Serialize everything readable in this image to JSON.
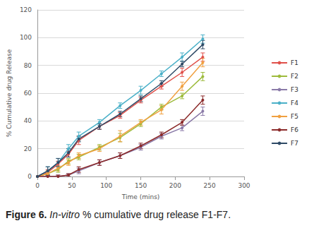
{
  "chart_data": {
    "type": "line",
    "x_label": "Time (mins)",
    "y_label": "% Cumulative drug Release",
    "caption": "Figure 6. In-vitro % cumulative drug release F1-F7.",
    "x": [
      0,
      15,
      30,
      45,
      60,
      90,
      120,
      150,
      180,
      210,
      240
    ],
    "xlim": [
      0,
      300
    ],
    "xticks": [
      0,
      50,
      100,
      150,
      200,
      250,
      300
    ],
    "ylim": [
      0,
      120
    ],
    "yticks": [
      0,
      20,
      40,
      60,
      80,
      100,
      120
    ],
    "grid": true,
    "legend": "right",
    "marker": "circle",
    "series": [
      {
        "name": "F1",
        "color": "#e0504a",
        "values": [
          0,
          3,
          9,
          16,
          26,
          36,
          44,
          55,
          65,
          75,
          86
        ],
        "errors": [
          0,
          2,
          2,
          2,
          3,
          2,
          2,
          2,
          2,
          3,
          3
        ]
      },
      {
        "name": "F2",
        "color": "#9dbb3c",
        "values": [
          0,
          2,
          5,
          11,
          14,
          21,
          28,
          38,
          50,
          58,
          72
        ],
        "errors": [
          0,
          2,
          2,
          2,
          2,
          2,
          3,
          2,
          2,
          2,
          3
        ]
      },
      {
        "name": "F3",
        "color": "#8a7aa8",
        "values": [
          0,
          0,
          0,
          1,
          4,
          10,
          15,
          21,
          29,
          35,
          47
        ],
        "errors": [
          0,
          1,
          1,
          1,
          2,
          2,
          2,
          2,
          2,
          2,
          3
        ]
      },
      {
        "name": "F4",
        "color": "#4ab0c8",
        "values": [
          0,
          4,
          10,
          20,
          29,
          39,
          51,
          62,
          74,
          86,
          99
        ],
        "errors": [
          0,
          3,
          3,
          3,
          3,
          2,
          2,
          3,
          2,
          3,
          3
        ]
      },
      {
        "name": "F5",
        "color": "#f0a040",
        "values": [
          0,
          2,
          6,
          10,
          15,
          20,
          29,
          39,
          48,
          65,
          82
        ],
        "errors": [
          0,
          2,
          2,
          2,
          2,
          2,
          4,
          2,
          3,
          3,
          3
        ]
      },
      {
        "name": "F6",
        "color": "#8b2a2a",
        "values": [
          0,
          0,
          0,
          1,
          5,
          10,
          15,
          22,
          30,
          39,
          55
        ],
        "errors": [
          0,
          1,
          1,
          1,
          2,
          2,
          2,
          2,
          2,
          2,
          3
        ]
      },
      {
        "name": "F7",
        "color": "#2e4a66",
        "values": [
          0,
          4,
          10,
          17,
          27,
          36,
          45,
          56,
          67,
          81,
          95
        ],
        "errors": [
          0,
          3,
          3,
          3,
          2,
          2,
          2,
          2,
          2,
          2,
          3
        ]
      }
    ]
  }
}
